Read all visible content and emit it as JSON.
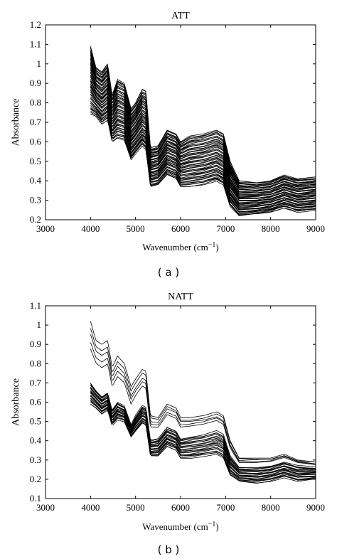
{
  "chart_data": [
    {
      "type": "line",
      "title": "ATT",
      "xlabel_main": "Wavenumber (cm",
      "xlabel_sup": "−1",
      "xlabel_end": ")",
      "ylabel": "Absorbance",
      "panel_label": "( a )",
      "xlim": [
        3000,
        9000
      ],
      "ylim": [
        0.2,
        1.2
      ],
      "xticks": [
        "3000",
        "4000",
        "5000",
        "6000",
        "7000",
        "8000",
        "9000"
      ],
      "yticks": [
        "0.2",
        "0.3",
        "0.4",
        "0.5",
        "0.6",
        "0.7",
        "0.8",
        "0.9",
        "1",
        "1.1",
        "1.2"
      ],
      "series_count": 60,
      "spectrum_top": [
        [
          4000,
          1.09
        ],
        [
          4120,
          0.98
        ],
        [
          4250,
          0.96
        ],
        [
          4380,
          1.0
        ],
        [
          4480,
          0.84
        ],
        [
          4600,
          0.92
        ],
        [
          4750,
          0.9
        ],
        [
          4900,
          0.77
        ],
        [
          5000,
          0.8
        ],
        [
          5150,
          0.87
        ],
        [
          5230,
          0.86
        ],
        [
          5330,
          0.57
        ],
        [
          5500,
          0.58
        ],
        [
          5700,
          0.66
        ],
        [
          5900,
          0.64
        ],
        [
          6000,
          0.6
        ],
        [
          6200,
          0.63
        ],
        [
          6500,
          0.64
        ],
        [
          6800,
          0.66
        ],
        [
          6950,
          0.64
        ],
        [
          7100,
          0.5
        ],
        [
          7300,
          0.4
        ],
        [
          7700,
          0.39
        ],
        [
          8000,
          0.4
        ],
        [
          8300,
          0.43
        ],
        [
          8600,
          0.41
        ],
        [
          9000,
          0.42
        ]
      ],
      "spectrum_bottom": [
        [
          4000,
          0.74
        ],
        [
          4120,
          0.73
        ],
        [
          4250,
          0.69
        ],
        [
          4380,
          0.71
        ],
        [
          4480,
          0.6
        ],
        [
          4600,
          0.62
        ],
        [
          4750,
          0.61
        ],
        [
          4900,
          0.51
        ],
        [
          5000,
          0.54
        ],
        [
          5150,
          0.58
        ],
        [
          5230,
          0.56
        ],
        [
          5330,
          0.37
        ],
        [
          5500,
          0.38
        ],
        [
          5700,
          0.43
        ],
        [
          5900,
          0.41
        ],
        [
          6000,
          0.37
        ],
        [
          6200,
          0.37
        ],
        [
          6500,
          0.38
        ],
        [
          6800,
          0.4
        ],
        [
          6950,
          0.38
        ],
        [
          7100,
          0.27
        ],
        [
          7300,
          0.22
        ],
        [
          7700,
          0.23
        ],
        [
          8000,
          0.24
        ],
        [
          8300,
          0.26
        ],
        [
          8600,
          0.24
        ],
        [
          9000,
          0.25
        ]
      ]
    },
    {
      "type": "line",
      "title": "NATT",
      "xlabel_main": "Wavenumber (cm",
      "xlabel_sup": "−1",
      "xlabel_end": ")",
      "ylabel": "Absorbance",
      "panel_label": "( b )",
      "xlim": [
        3000,
        9000
      ],
      "ylim": [
        0.1,
        1.1
      ],
      "xticks": [
        "3000",
        "4000",
        "5000",
        "6000",
        "7000",
        "8000",
        "9000"
      ],
      "yticks": [
        "0.1",
        "0.2",
        "0.3",
        "0.4",
        "0.5",
        "0.6",
        "0.7",
        "0.8",
        "0.9",
        "1",
        "1.1"
      ],
      "series_count": 30,
      "spectrum_top": [
        [
          4000,
          1.02
        ],
        [
          4120,
          0.92
        ],
        [
          4250,
          0.9
        ],
        [
          4380,
          0.92
        ],
        [
          4480,
          0.78
        ],
        [
          4600,
          0.84
        ],
        [
          4750,
          0.8
        ],
        [
          4900,
          0.68
        ],
        [
          5000,
          0.72
        ],
        [
          5150,
          0.77
        ],
        [
          5230,
          0.76
        ],
        [
          5330,
          0.53
        ],
        [
          5500,
          0.52
        ],
        [
          5700,
          0.59
        ],
        [
          5900,
          0.57
        ],
        [
          6000,
          0.52
        ],
        [
          6200,
          0.52
        ],
        [
          6500,
          0.53
        ],
        [
          6800,
          0.55
        ],
        [
          6950,
          0.53
        ],
        [
          7100,
          0.4
        ],
        [
          7300,
          0.31
        ],
        [
          7700,
          0.31
        ],
        [
          8000,
          0.31
        ],
        [
          8300,
          0.33
        ],
        [
          8600,
          0.3
        ],
        [
          9000,
          0.29
        ]
      ],
      "spectrum_mid": [
        [
          4000,
          0.7
        ],
        [
          4120,
          0.66
        ],
        [
          4250,
          0.63
        ],
        [
          4380,
          0.65
        ],
        [
          4480,
          0.56
        ],
        [
          4600,
          0.6
        ],
        [
          4750,
          0.58
        ],
        [
          4900,
          0.48
        ],
        [
          5000,
          0.53
        ],
        [
          5150,
          0.58
        ],
        [
          5230,
          0.57
        ],
        [
          5330,
          0.4
        ],
        [
          5500,
          0.41
        ],
        [
          5700,
          0.47
        ],
        [
          5900,
          0.45
        ],
        [
          6000,
          0.41
        ],
        [
          6200,
          0.42
        ],
        [
          6500,
          0.43
        ],
        [
          6800,
          0.45
        ],
        [
          6950,
          0.43
        ],
        [
          7100,
          0.32
        ],
        [
          7300,
          0.26
        ],
        [
          7700,
          0.26
        ],
        [
          8000,
          0.27
        ],
        [
          8300,
          0.29
        ],
        [
          8600,
          0.27
        ],
        [
          9000,
          0.26
        ]
      ],
      "spectrum_bottom": [
        [
          4000,
          0.59
        ],
        [
          4120,
          0.57
        ],
        [
          4250,
          0.54
        ],
        [
          4380,
          0.56
        ],
        [
          4480,
          0.48
        ],
        [
          4600,
          0.51
        ],
        [
          4750,
          0.5
        ],
        [
          4900,
          0.42
        ],
        [
          5000,
          0.45
        ],
        [
          5150,
          0.49
        ],
        [
          5230,
          0.48
        ],
        [
          5330,
          0.32
        ],
        [
          5500,
          0.32
        ],
        [
          5700,
          0.37
        ],
        [
          5900,
          0.35
        ],
        [
          6000,
          0.31
        ],
        [
          6200,
          0.31
        ],
        [
          6500,
          0.32
        ],
        [
          6800,
          0.33
        ],
        [
          6950,
          0.31
        ],
        [
          7100,
          0.22
        ],
        [
          7300,
          0.19
        ],
        [
          7700,
          0.18
        ],
        [
          8000,
          0.19
        ],
        [
          8300,
          0.21
        ],
        [
          8600,
          0.19
        ],
        [
          9000,
          0.2
        ]
      ]
    }
  ]
}
